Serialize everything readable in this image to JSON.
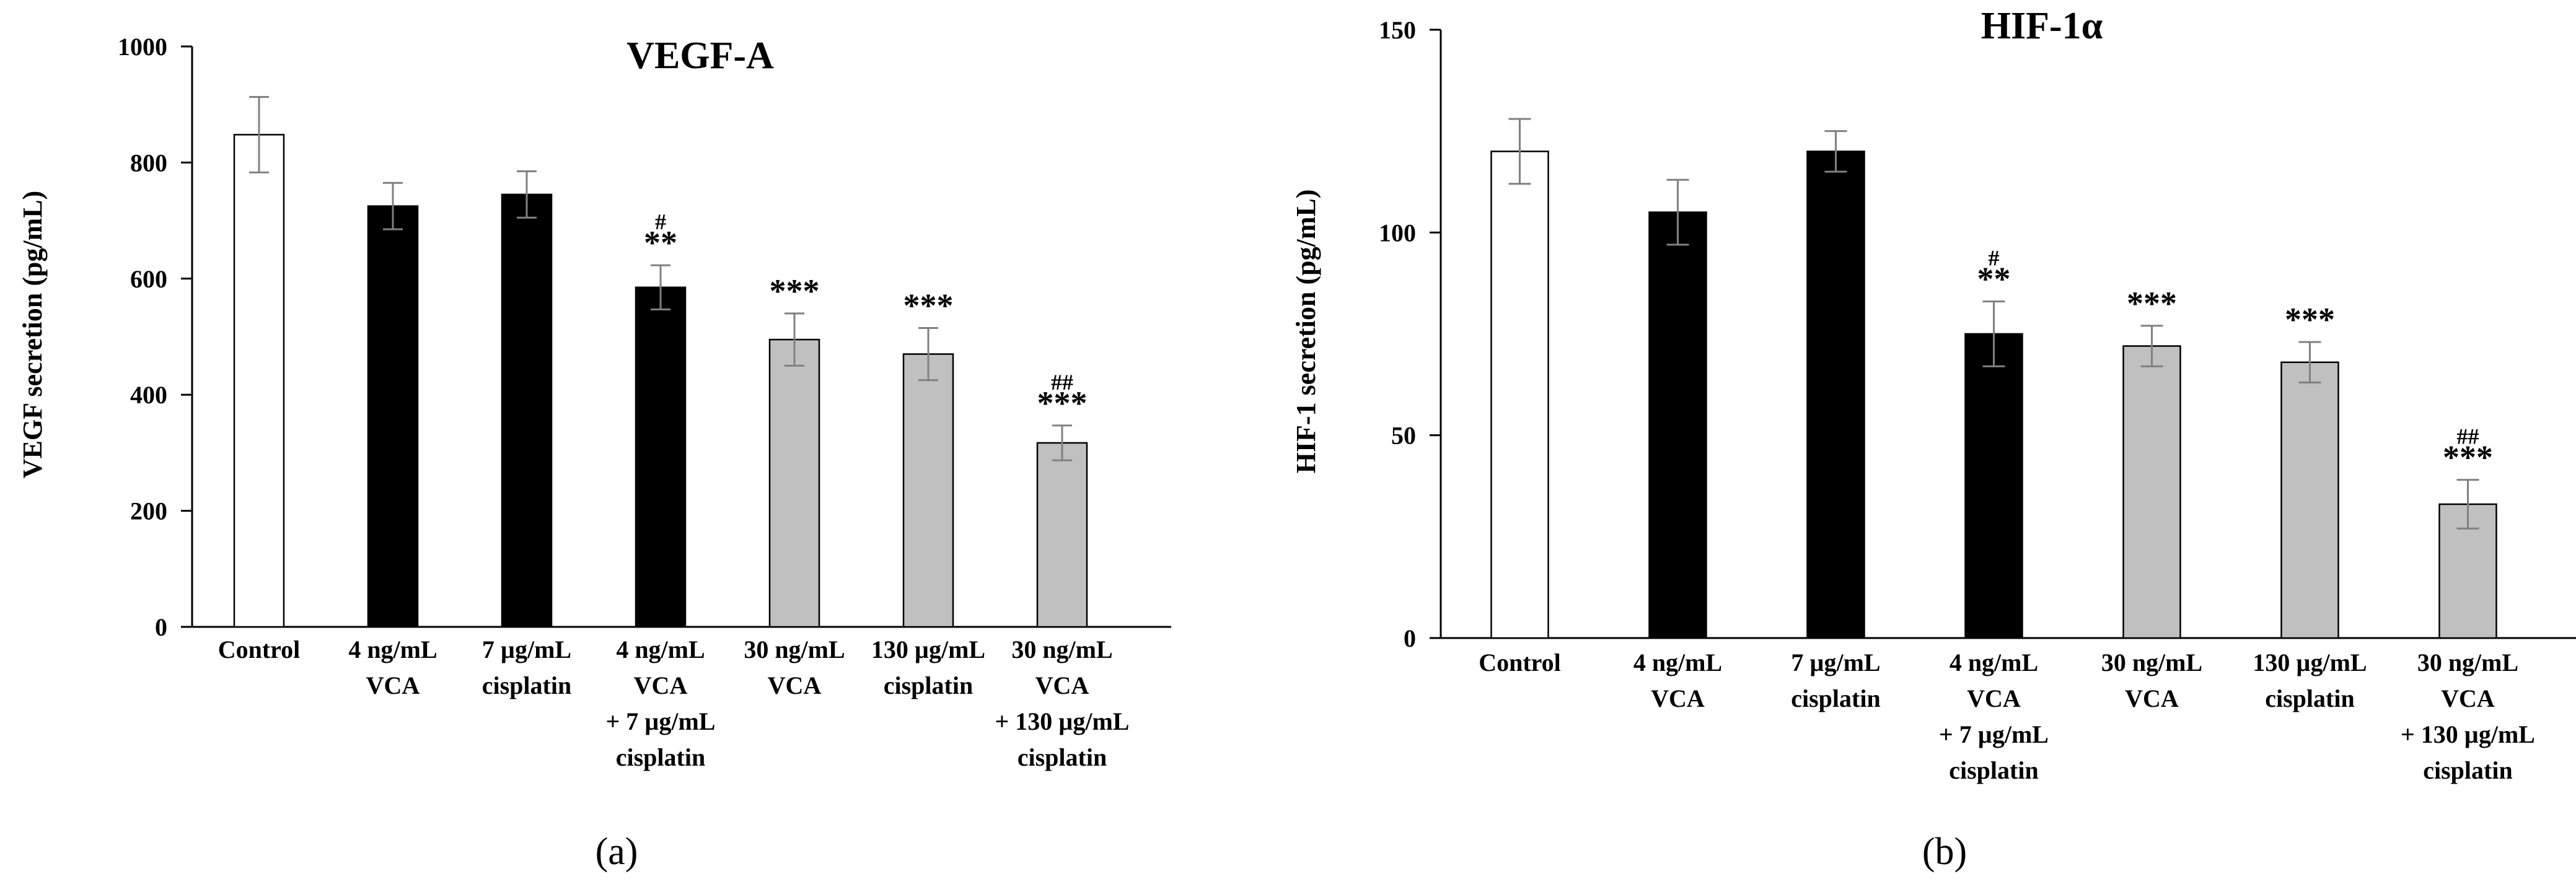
{
  "chart_data": [
    {
      "type": "bar",
      "panel_label": "(a)",
      "title": "VEGF-A",
      "ylabel": "VEGF secretion (pg/mL)",
      "xlabel": "",
      "ylim": [
        0,
        1000
      ],
      "yticks": [
        0,
        200,
        400,
        600,
        800,
        1000
      ],
      "grid": false,
      "categories": [
        [
          "Control"
        ],
        [
          "4 ng/mL",
          "VCA"
        ],
        [
          "7 µg/mL",
          "cisplatin"
        ],
        [
          "4 ng/mL",
          "VCA",
          "+ 7 µg/mL",
          "cisplatin"
        ],
        [
          "30 ng/mL",
          "VCA"
        ],
        [
          "130 µg/mL",
          "cisplatin"
        ],
        [
          "30 ng/mL",
          "VCA",
          "+ 130 µg/mL",
          "cisplatin"
        ]
      ],
      "values": [
        848,
        725,
        745,
        585,
        495,
        470,
        317
      ],
      "errors": [
        65,
        40,
        40,
        38,
        45,
        45,
        30
      ],
      "fills": [
        "#ffffff",
        "#000000",
        "#000000",
        "#000000",
        "#c0c0c0",
        "#c0c0c0",
        "#c0c0c0"
      ],
      "annotations": [
        [],
        [],
        [],
        [
          "#",
          "**"
        ],
        [
          "***"
        ],
        [
          "***"
        ],
        [
          "##",
          "***"
        ]
      ]
    },
    {
      "type": "bar",
      "panel_label": "(b)",
      "title": "HIF-1α",
      "ylabel": "HIF-1 secretion (pg/mL)",
      "xlabel": "",
      "ylim": [
        0,
        150
      ],
      "yticks": [
        0,
        50,
        100,
        150
      ],
      "grid": false,
      "categories": [
        [
          "Control"
        ],
        [
          "4 ng/mL",
          "VCA"
        ],
        [
          "7 µg/mL",
          "cisplatin"
        ],
        [
          "4 ng/mL",
          "VCA",
          "+ 7 µg/mL",
          "cisplatin"
        ],
        [
          "30 ng/mL",
          "VCA"
        ],
        [
          "130 µg/mL",
          "cisplatin"
        ],
        [
          "30 ng/mL",
          "VCA",
          "+ 130 µg/mL",
          "cisplatin"
        ]
      ],
      "values": [
        120,
        105,
        120,
        75,
        72,
        68,
        33
      ],
      "errors": [
        8,
        8,
        5,
        8,
        5,
        5,
        6
      ],
      "fills": [
        "#ffffff",
        "#000000",
        "#000000",
        "#000000",
        "#c0c0c0",
        "#c0c0c0",
        "#c0c0c0"
      ],
      "annotations": [
        [],
        [],
        [],
        [
          "#",
          "**"
        ],
        [
          "***"
        ],
        [
          "***"
        ],
        [
          "##",
          "***"
        ]
      ]
    }
  ]
}
